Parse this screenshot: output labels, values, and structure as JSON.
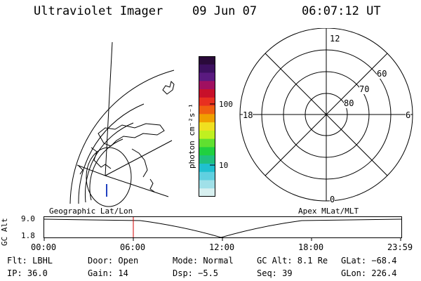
{
  "header": {
    "instrument": "Ultraviolet Imager",
    "date": "09 Jun 07",
    "time": "06:07:12 UT"
  },
  "colorbar": {
    "unit_label": "photon cm⁻²s⁻¹",
    "tick_labels": [
      "100",
      "10"
    ],
    "colors": [
      "#2a0a3a",
      "#3d1060",
      "#5a1a80",
      "#a01060",
      "#c8102a",
      "#e83020",
      "#f06010",
      "#f0a000",
      "#f0e020",
      "#c0f020",
      "#60e030",
      "#20d040",
      "#20c080",
      "#20c0d0",
      "#60d0e0",
      "#a0e0e8",
      "#d8f0f0"
    ]
  },
  "polar": {
    "mlt_labels": {
      "top": "12",
      "left": "18",
      "right": "6",
      "bottom": "0"
    },
    "lat_labels": [
      "60",
      "70",
      "80"
    ]
  },
  "timeline": {
    "left_label": "Geographic Lat/Lon",
    "right_label": "Apex MLat/MLT",
    "axis_title": "GC Alt",
    "y_ticks": [
      "9.0",
      "1.8"
    ],
    "x_ticks": [
      "00:00",
      "06:00",
      "12:00",
      "18:00",
      "23:59"
    ],
    "current_marker_color": "#d00000"
  },
  "status": {
    "row1": {
      "filter": "Flt: LBHL",
      "door": "Door: Open",
      "mode": "Mode: Normal",
      "gc_alt": "GC Alt: 8.1 Re",
      "glat": "GLat: −68.4"
    },
    "row2": {
      "ip": "IP: 36.0",
      "gain": "Gain: 14",
      "dsp": "Dsp:   −5.5",
      "seq": "Seq: 39",
      "glon": "GLon: 226.4"
    }
  }
}
